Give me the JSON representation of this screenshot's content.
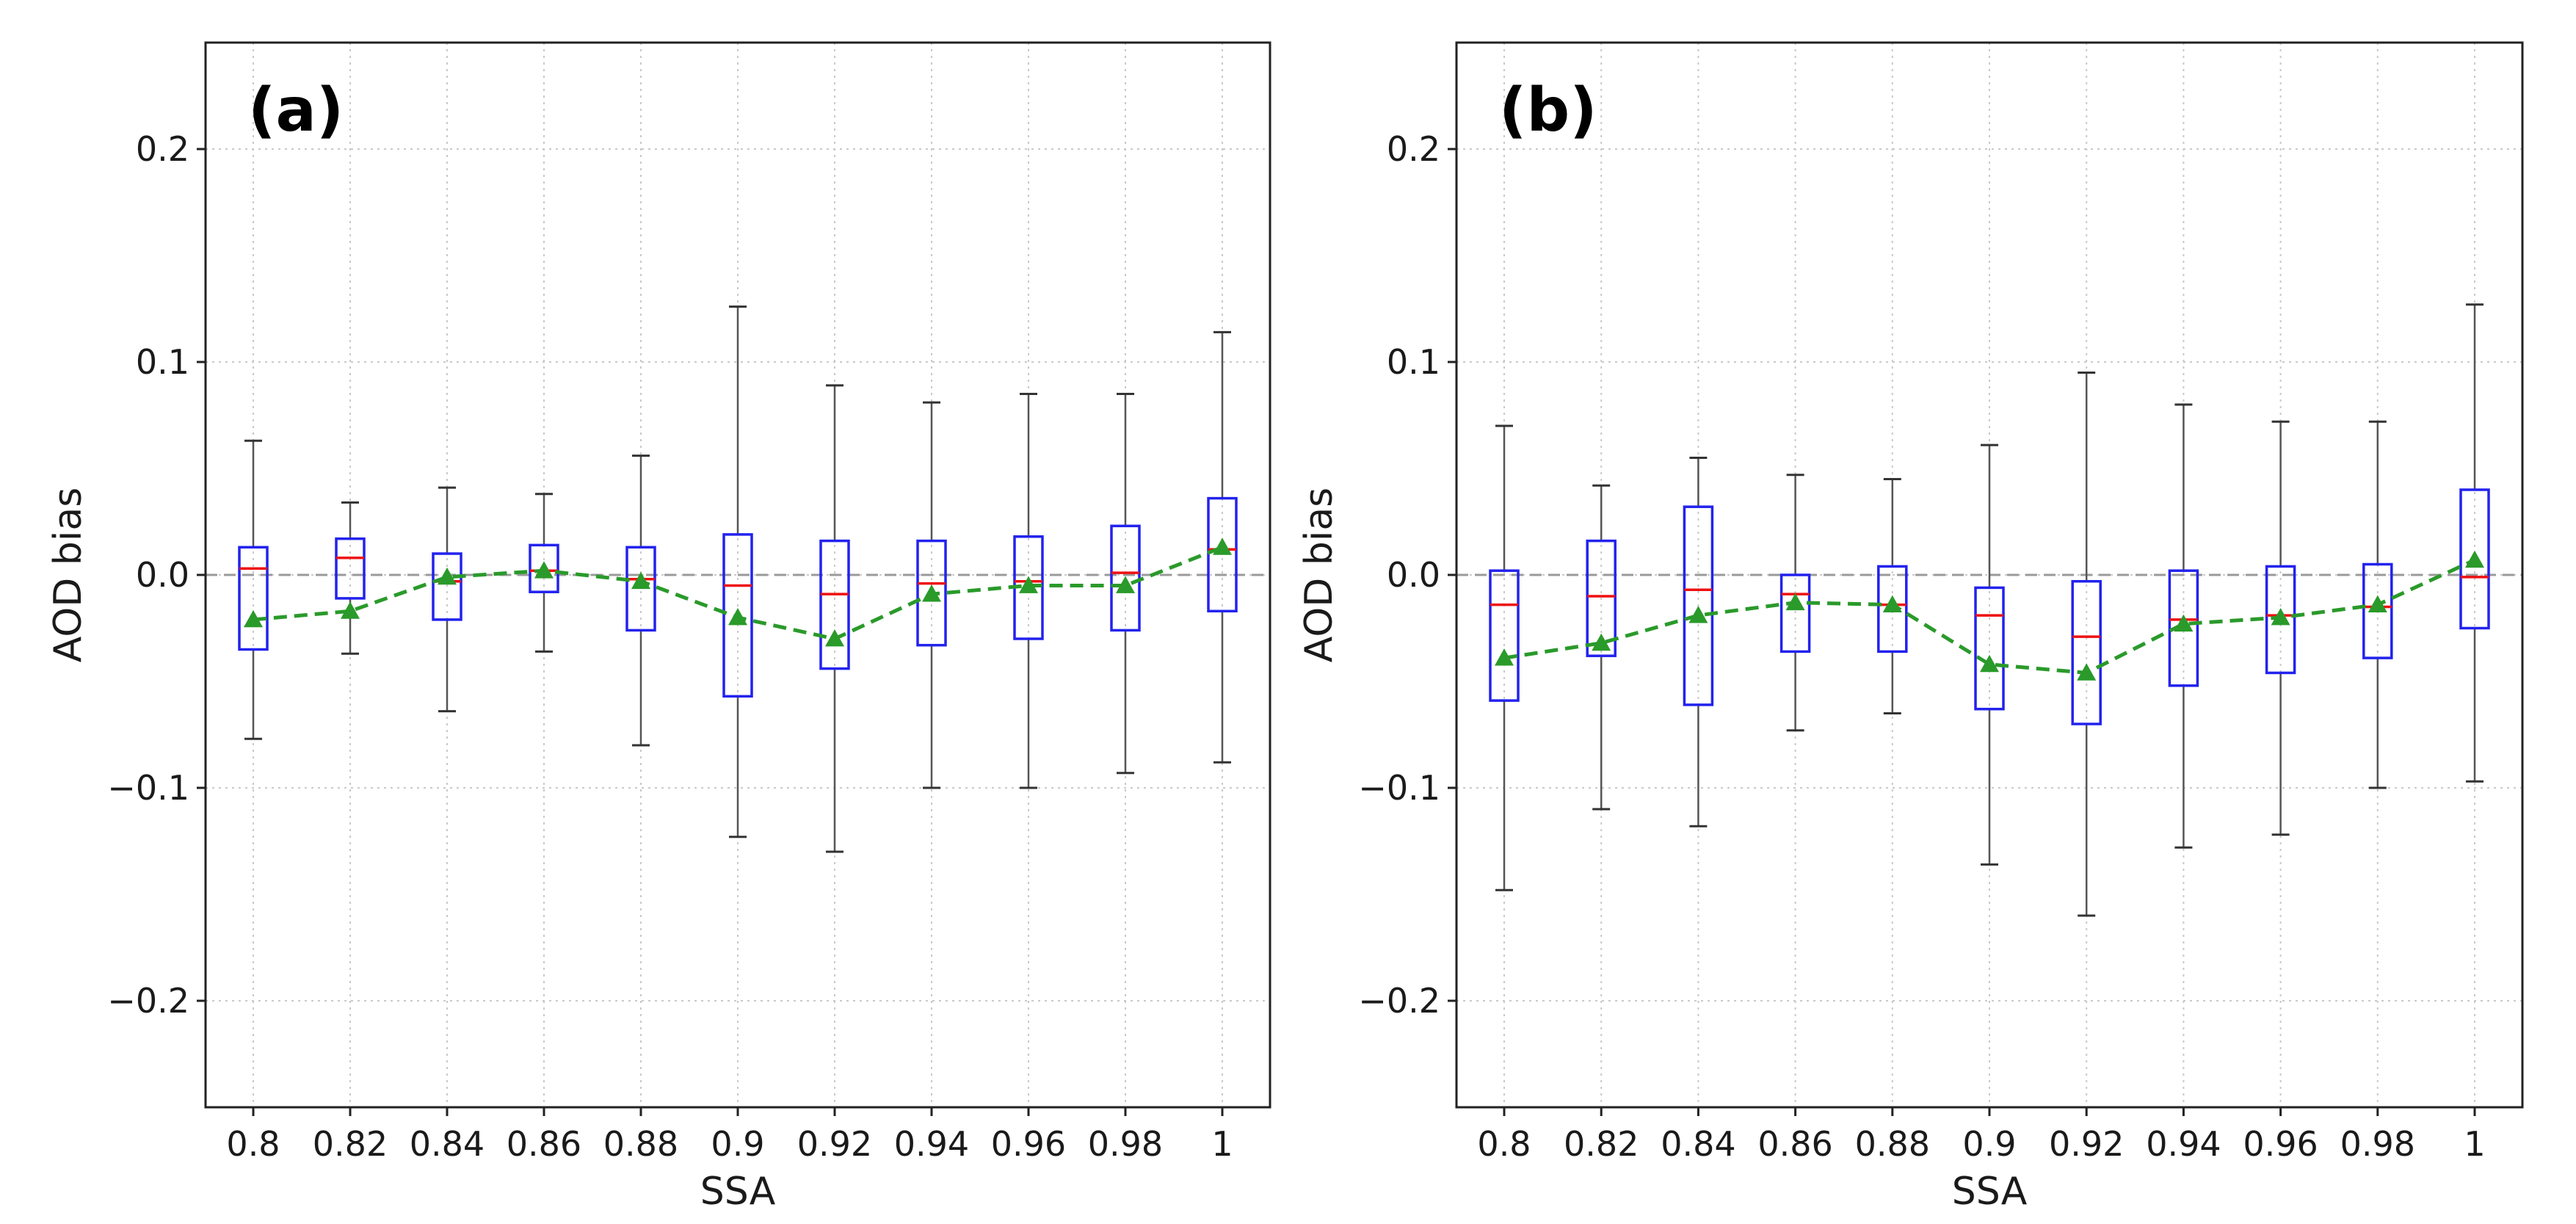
{
  "chart_data": [
    {
      "type": "box",
      "panel_label": "(a)",
      "title": "",
      "xlabel": "SSA",
      "ylabel": "AOD bias",
      "ylim": [
        -0.25,
        0.25
      ],
      "grid": true,
      "reference_line": 0.0,
      "categories": [
        "0.8",
        "0.82",
        "0.84",
        "0.86",
        "0.88",
        "0.9",
        "0.92",
        "0.94",
        "0.96",
        "0.98",
        "1"
      ],
      "yticks": [
        0.2,
        0.1,
        0.0,
        -0.1,
        -0.2
      ],
      "ytick_labels": [
        "0.2",
        "0.1",
        "0.0",
        "−0.1",
        "−0.2"
      ],
      "whisker_low": [
        -0.077,
        -0.037,
        -0.064,
        -0.036,
        -0.08,
        -0.123,
        -0.13,
        -0.1,
        -0.1,
        -0.093,
        -0.088
      ],
      "q1": [
        -0.035,
        -0.011,
        -0.021,
        -0.008,
        -0.026,
        -0.057,
        -0.044,
        -0.033,
        -0.03,
        -0.026,
        -0.017
      ],
      "median": [
        0.003,
        0.008,
        -0.003,
        0.002,
        -0.002,
        -0.005,
        -0.009,
        -0.004,
        -0.003,
        0.001,
        0.012
      ],
      "q3": [
        0.013,
        0.017,
        0.01,
        0.014,
        0.013,
        0.019,
        0.016,
        0.016,
        0.018,
        0.023,
        0.036
      ],
      "whisker_high": [
        0.063,
        0.034,
        0.041,
        0.038,
        0.056,
        0.126,
        0.089,
        0.081,
        0.085,
        0.085,
        0.114
      ],
      "mean": [
        -0.021,
        -0.017,
        -0.001,
        0.002,
        -0.003,
        -0.02,
        -0.03,
        -0.009,
        -0.005,
        -0.005,
        0.013
      ]
    },
    {
      "type": "box",
      "panel_label": "(b)",
      "title": "",
      "xlabel": "SSA",
      "ylabel": "AOD bias",
      "ylim": [
        -0.25,
        0.25
      ],
      "grid": true,
      "reference_line": 0.0,
      "categories": [
        "0.8",
        "0.82",
        "0.84",
        "0.86",
        "0.88",
        "0.9",
        "0.92",
        "0.94",
        "0.96",
        "0.98",
        "1"
      ],
      "yticks": [
        0.2,
        0.1,
        0.0,
        -0.1,
        -0.2
      ],
      "ytick_labels": [
        "0.2",
        "0.1",
        "0.0",
        "−0.1",
        "−0.2"
      ],
      "whisker_low": [
        -0.148,
        -0.11,
        -0.118,
        -0.073,
        -0.065,
        -0.136,
        -0.16,
        -0.128,
        -0.122,
        -0.1,
        -0.097
      ],
      "q1": [
        -0.059,
        -0.038,
        -0.061,
        -0.036,
        -0.036,
        -0.063,
        -0.07,
        -0.052,
        -0.046,
        -0.039,
        -0.025
      ],
      "median": [
        -0.014,
        -0.01,
        -0.007,
        -0.009,
        -0.014,
        -0.019,
        -0.029,
        -0.021,
        -0.019,
        -0.015,
        -0.001
      ],
      "q3": [
        0.002,
        0.016,
        0.032,
        0.0,
        0.004,
        -0.006,
        -0.003,
        0.002,
        0.004,
        0.005,
        0.04
      ],
      "whisker_high": [
        0.07,
        0.042,
        0.055,
        0.047,
        0.045,
        0.061,
        0.095,
        0.08,
        0.072,
        0.072,
        0.127
      ],
      "mean": [
        -0.039,
        -0.032,
        -0.019,
        -0.013,
        -0.014,
        -0.042,
        -0.046,
        -0.023,
        -0.02,
        -0.014,
        0.007
      ]
    }
  ]
}
